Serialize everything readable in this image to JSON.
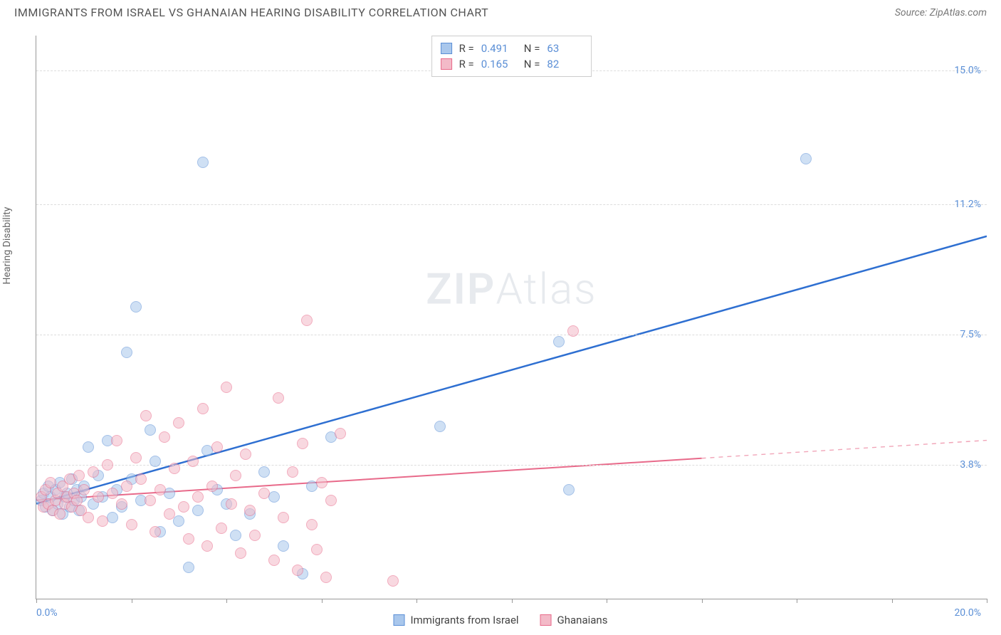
{
  "title": "IMMIGRANTS FROM ISRAEL VS GHANAIAN HEARING DISABILITY CORRELATION CHART",
  "source_label": "Source: ",
  "source_name": "ZipAtlas.com",
  "y_axis_label": "Hearing Disability",
  "watermark": {
    "bold": "ZIP",
    "rest": "Atlas"
  },
  "chart": {
    "type": "scatter",
    "xlim": [
      0,
      20
    ],
    "ylim": [
      0,
      16
    ],
    "x_min_label": "0.0%",
    "x_max_label": "20.0%",
    "y_gridlines": [
      3.8,
      7.5,
      11.2,
      15.0
    ],
    "y_tick_labels": [
      "3.8%",
      "7.5%",
      "11.2%",
      "15.0%"
    ],
    "x_ticks": [
      0,
      2,
      4,
      6,
      8,
      10,
      12,
      14,
      16,
      18,
      20
    ],
    "background_color": "#ffffff",
    "grid_color": "#dddddd",
    "axis_color": "#999999",
    "marker_radius": 8,
    "marker_opacity": 0.55,
    "series": [
      {
        "name": "Immigrants from Israel",
        "color_fill": "#a9c7ec",
        "color_stroke": "#5b8fd6",
        "reg_color": "#2e6fd1",
        "reg_width": 2.5,
        "R": "0.491",
        "N": "63",
        "regression": {
          "x0": 0,
          "y0": 2.7,
          "x1": 20,
          "y1": 10.3,
          "solid_until_x": 20
        },
        "points": [
          [
            0.1,
            2.8
          ],
          [
            0.15,
            3.0
          ],
          [
            0.2,
            2.6
          ],
          [
            0.25,
            3.2
          ],
          [
            0.3,
            2.9
          ],
          [
            0.35,
            2.5
          ],
          [
            0.4,
            3.1
          ],
          [
            0.45,
            2.7
          ],
          [
            0.5,
            3.3
          ],
          [
            0.55,
            2.4
          ],
          [
            0.6,
            2.9
          ],
          [
            0.65,
            3.0
          ],
          [
            0.7,
            2.6
          ],
          [
            0.75,
            3.4
          ],
          [
            0.8,
            2.8
          ],
          [
            0.85,
            3.1
          ],
          [
            0.9,
            2.5
          ],
          [
            0.95,
            2.9
          ],
          [
            1.0,
            3.2
          ],
          [
            1.1,
            4.3
          ],
          [
            1.2,
            2.7
          ],
          [
            1.3,
            3.5
          ],
          [
            1.4,
            2.9
          ],
          [
            1.5,
            4.5
          ],
          [
            1.6,
            2.3
          ],
          [
            1.7,
            3.1
          ],
          [
            1.8,
            2.6
          ],
          [
            1.9,
            7.0
          ],
          [
            2.0,
            3.4
          ],
          [
            2.1,
            8.3
          ],
          [
            2.2,
            2.8
          ],
          [
            2.4,
            4.8
          ],
          [
            2.5,
            3.9
          ],
          [
            2.6,
            1.9
          ],
          [
            2.8,
            3.0
          ],
          [
            3.0,
            2.2
          ],
          [
            3.2,
            0.9
          ],
          [
            3.4,
            2.5
          ],
          [
            3.5,
            12.4
          ],
          [
            3.6,
            4.2
          ],
          [
            3.8,
            3.1
          ],
          [
            4.0,
            2.7
          ],
          [
            4.2,
            1.8
          ],
          [
            4.5,
            2.4
          ],
          [
            4.8,
            3.6
          ],
          [
            5.0,
            2.9
          ],
          [
            5.2,
            1.5
          ],
          [
            5.6,
            0.7
          ],
          [
            5.8,
            3.2
          ],
          [
            6.2,
            4.6
          ],
          [
            8.5,
            4.9
          ],
          [
            11.0,
            7.3
          ],
          [
            11.2,
            3.1
          ],
          [
            16.2,
            12.5
          ]
        ]
      },
      {
        "name": "Ghanaians",
        "color_fill": "#f3bac8",
        "color_stroke": "#e86a8a",
        "reg_color": "#e86a8a",
        "reg_width": 2,
        "R": "0.165",
        "N": "82",
        "regression": {
          "x0": 0,
          "y0": 2.8,
          "x1": 20,
          "y1": 4.5,
          "solid_until_x": 14
        },
        "points": [
          [
            0.1,
            2.9
          ],
          [
            0.15,
            2.6
          ],
          [
            0.2,
            3.1
          ],
          [
            0.25,
            2.7
          ],
          [
            0.3,
            3.3
          ],
          [
            0.35,
            2.5
          ],
          [
            0.4,
            2.8
          ],
          [
            0.45,
            3.0
          ],
          [
            0.5,
            2.4
          ],
          [
            0.55,
            3.2
          ],
          [
            0.6,
            2.7
          ],
          [
            0.65,
            2.9
          ],
          [
            0.7,
            3.4
          ],
          [
            0.75,
            2.6
          ],
          [
            0.8,
            3.0
          ],
          [
            0.85,
            2.8
          ],
          [
            0.9,
            3.5
          ],
          [
            0.95,
            2.5
          ],
          [
            1.0,
            3.1
          ],
          [
            1.1,
            2.3
          ],
          [
            1.2,
            3.6
          ],
          [
            1.3,
            2.9
          ],
          [
            1.4,
            2.2
          ],
          [
            1.5,
            3.8
          ],
          [
            1.6,
            3.0
          ],
          [
            1.7,
            4.5
          ],
          [
            1.8,
            2.7
          ],
          [
            1.9,
            3.2
          ],
          [
            2.0,
            2.1
          ],
          [
            2.1,
            4.0
          ],
          [
            2.2,
            3.4
          ],
          [
            2.3,
            5.2
          ],
          [
            2.4,
            2.8
          ],
          [
            2.5,
            1.9
          ],
          [
            2.6,
            3.1
          ],
          [
            2.7,
            4.6
          ],
          [
            2.8,
            2.4
          ],
          [
            2.9,
            3.7
          ],
          [
            3.0,
            5.0
          ],
          [
            3.1,
            2.6
          ],
          [
            3.2,
            1.7
          ],
          [
            3.3,
            3.9
          ],
          [
            3.4,
            2.9
          ],
          [
            3.5,
            5.4
          ],
          [
            3.6,
            1.5
          ],
          [
            3.7,
            3.2
          ],
          [
            3.8,
            4.3
          ],
          [
            3.9,
            2.0
          ],
          [
            4.0,
            6.0
          ],
          [
            4.1,
            2.7
          ],
          [
            4.2,
            3.5
          ],
          [
            4.3,
            1.3
          ],
          [
            4.4,
            4.1
          ],
          [
            4.5,
            2.5
          ],
          [
            4.6,
            1.8
          ],
          [
            4.8,
            3.0
          ],
          [
            5.0,
            1.1
          ],
          [
            5.1,
            5.7
          ],
          [
            5.2,
            2.3
          ],
          [
            5.4,
            3.6
          ],
          [
            5.5,
            0.8
          ],
          [
            5.6,
            4.4
          ],
          [
            5.7,
            7.9
          ],
          [
            5.8,
            2.1
          ],
          [
            5.9,
            1.4
          ],
          [
            6.0,
            3.3
          ],
          [
            6.1,
            0.6
          ],
          [
            6.2,
            2.8
          ],
          [
            6.4,
            4.7
          ],
          [
            7.5,
            0.5
          ],
          [
            11.3,
            7.6
          ]
        ]
      }
    ]
  },
  "legend_top": {
    "r_label": "R =",
    "n_label": "N ="
  }
}
